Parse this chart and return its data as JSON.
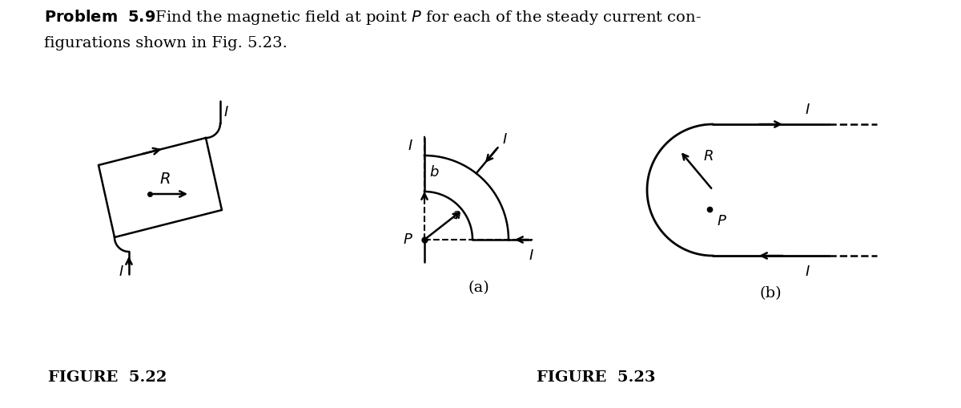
{
  "bg_color": "#ffffff",
  "text_color": "#000000",
  "fig522_label": "FIGURE  5.22",
  "fig523_label": "FIGURE  5.23",
  "sub_a_label": "(a)",
  "sub_b_label": "(b)",
  "lw": 1.8,
  "fs": 13,
  "xlim": [
    0,
    12
  ],
  "ylim": [
    0,
    5.1
  ]
}
